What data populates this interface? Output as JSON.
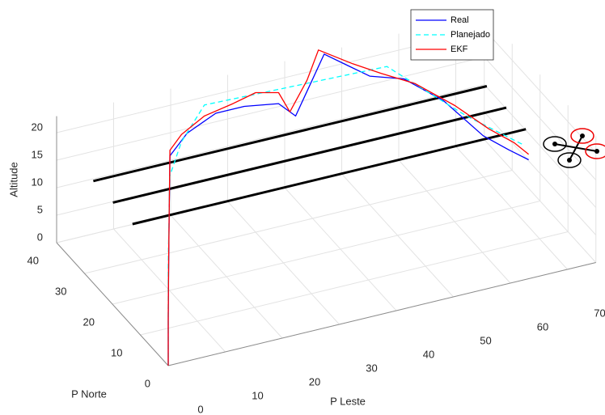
{
  "chart_data": {
    "type": "line3d",
    "xlabel": "P Leste",
    "ylabel": "P Norte",
    "zlabel": "Altitude",
    "xlim": [
      0,
      75
    ],
    "ylim": [
      0,
      40
    ],
    "zlim": [
      0,
      23
    ],
    "xticks": [
      0,
      10,
      20,
      30,
      40,
      50,
      60,
      70
    ],
    "yticks": [
      0,
      10,
      20,
      30,
      40
    ],
    "zticks": [
      0,
      5,
      10,
      15,
      20
    ],
    "grid": true,
    "legend": "northeast",
    "series": [
      {
        "name": "Real",
        "color": "#0000ff",
        "linestyle": "solid",
        "x": [
          0,
          0,
          4,
          8,
          11,
          14,
          18,
          24,
          29,
          35,
          38,
          40,
          43,
          47,
          51,
          57,
          62,
          66,
          70,
          73
        ],
        "y": [
          0,
          0,
          8,
          16,
          22,
          28,
          30,
          32,
          32,
          32,
          32,
          32,
          32,
          32,
          32,
          32,
          28,
          22,
          21,
          20
        ],
        "z": [
          0,
          8,
          14,
          17,
          18,
          19,
          21,
          22,
          22,
          21,
          18,
          22,
          28,
          25,
          22,
          20,
          17,
          13,
          10,
          8
        ]
      },
      {
        "name": "Planejado",
        "color": "#00ffff",
        "linestyle": "dashed",
        "x": [
          0,
          0,
          12,
          16,
          22,
          54,
          64,
          72
        ],
        "y": [
          0,
          0,
          24,
          28,
          32,
          32,
          24,
          20
        ],
        "z": [
          0,
          18,
          18,
          21,
          24,
          23,
          16,
          11
        ]
      },
      {
        "name": "EKF",
        "color": "#ff0000",
        "linestyle": "solid",
        "x": [
          0,
          0,
          4,
          8,
          11,
          14,
          17,
          22,
          27,
          31,
          35,
          37,
          40,
          42,
          48,
          53,
          58,
          63,
          67,
          71,
          73
        ],
        "y": [
          0,
          0,
          8,
          16,
          22,
          28,
          30,
          32,
          32,
          32,
          32,
          32,
          32,
          32,
          32,
          32,
          30,
          26,
          22,
          21,
          20
        ],
        "z": [
          0,
          9,
          15,
          17,
          19,
          20,
          21,
          22,
          23,
          24,
          23,
          19,
          24,
          29,
          25,
          22,
          20,
          17,
          14,
          11,
          9
        ]
      }
    ],
    "wire_color": "#000000",
    "wires": [
      {
        "x": [
          4,
          73
        ],
        "y": [
          35,
          35
        ],
        "z": [
          13,
          13
        ]
      },
      {
        "x": [
          4,
          73
        ],
        "y": [
          28,
          28
        ],
        "z": [
          13,
          13
        ]
      },
      {
        "x": [
          4,
          73
        ],
        "y": [
          21,
          21
        ],
        "z": [
          13,
          13
        ]
      }
    ]
  }
}
